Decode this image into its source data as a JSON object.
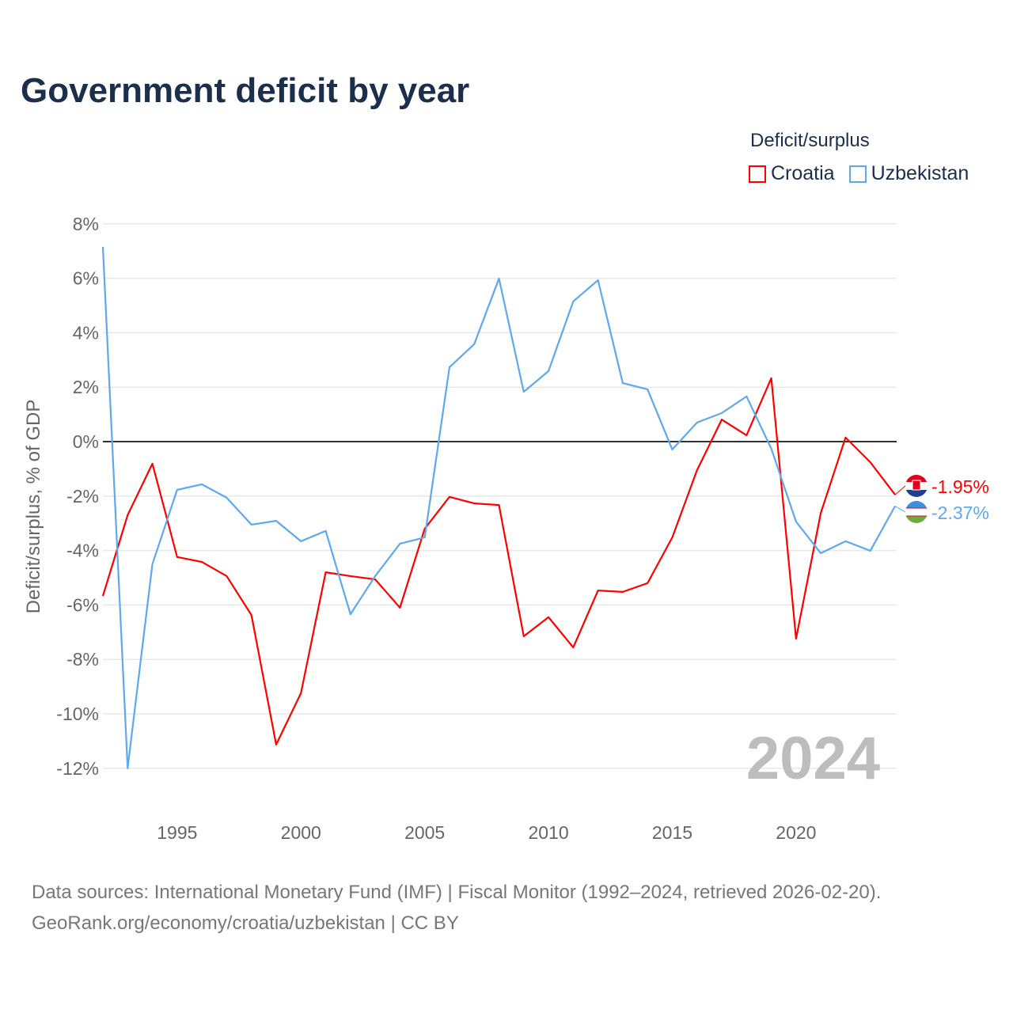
{
  "title": "Government deficit by year",
  "legend": {
    "title": "Deficit/surplus"
  },
  "source": {
    "line1": "Data sources: International Monetary Fund (IMF) | Fiscal Monitor (1992–2024, retrieved 2026-02-20).",
    "line2": "GeoRank.org/economy/croatia/uzbekistan | CC BY"
  },
  "chart_data": {
    "type": "line",
    "title": "Government deficit by year",
    "xlabel": "",
    "ylabel": "Deficit/surplus, % of GDP",
    "ylim": [
      -12,
      8
    ],
    "xlim": [
      1992,
      2024
    ],
    "yticks": [
      8,
      6,
      4,
      2,
      0,
      -2,
      -4,
      -6,
      -8,
      -10,
      -12
    ],
    "ytick_labels": [
      "8%",
      "6%",
      "4%",
      "2%",
      "0%",
      "-2%",
      "-4%",
      "-6%",
      "-8%",
      "-10%",
      "-12%"
    ],
    "xticks": [
      1995,
      2000,
      2005,
      2010,
      2015,
      2020
    ],
    "xtick_labels": [
      "1995",
      "2000",
      "2005",
      "2010",
      "2015",
      "2020"
    ],
    "grid": true,
    "legend_position": "top-right",
    "year_watermark": "2024",
    "x": [
      1992,
      1993,
      1994,
      1995,
      1996,
      1997,
      1998,
      1999,
      2000,
      2001,
      2002,
      2003,
      2004,
      2005,
      2006,
      2007,
      2008,
      2009,
      2010,
      2011,
      2012,
      2013,
      2014,
      2015,
      2016,
      2017,
      2018,
      2019,
      2020,
      2021,
      2022,
      2023,
      2024
    ],
    "series": [
      {
        "name": "Croatia",
        "color": "#ff0000",
        "end_label": "-1.95%",
        "values": [
          -5.67,
          -2.7,
          -0.81,
          -4.24,
          -4.42,
          -4.94,
          -6.37,
          -11.13,
          -9.24,
          -4.8,
          -4.94,
          -5.06,
          -6.1,
          -3.2,
          -2.03,
          -2.27,
          -2.33,
          -7.15,
          -6.45,
          -7.56,
          -5.47,
          -5.52,
          -5.2,
          -3.52,
          -1.05,
          0.81,
          0.23,
          2.33,
          -7.24,
          -2.62,
          0.15,
          -0.76,
          -1.95
        ]
      },
      {
        "name": "Uzbekistan",
        "color": "#5ea8ee",
        "end_label": "-2.37%",
        "values": [
          7.15,
          -12.0,
          -4.5,
          -1.77,
          -1.57,
          -2.06,
          -3.05,
          -2.91,
          -3.66,
          -3.28,
          -6.34,
          -4.94,
          -3.75,
          -3.52,
          2.73,
          3.58,
          5.99,
          1.83,
          2.59,
          5.15,
          5.93,
          2.15,
          1.92,
          -0.29,
          0.7,
          1.05,
          1.66,
          -0.26,
          -2.94,
          -4.1,
          -3.66,
          -4.01,
          -2.37
        ]
      }
    ]
  }
}
